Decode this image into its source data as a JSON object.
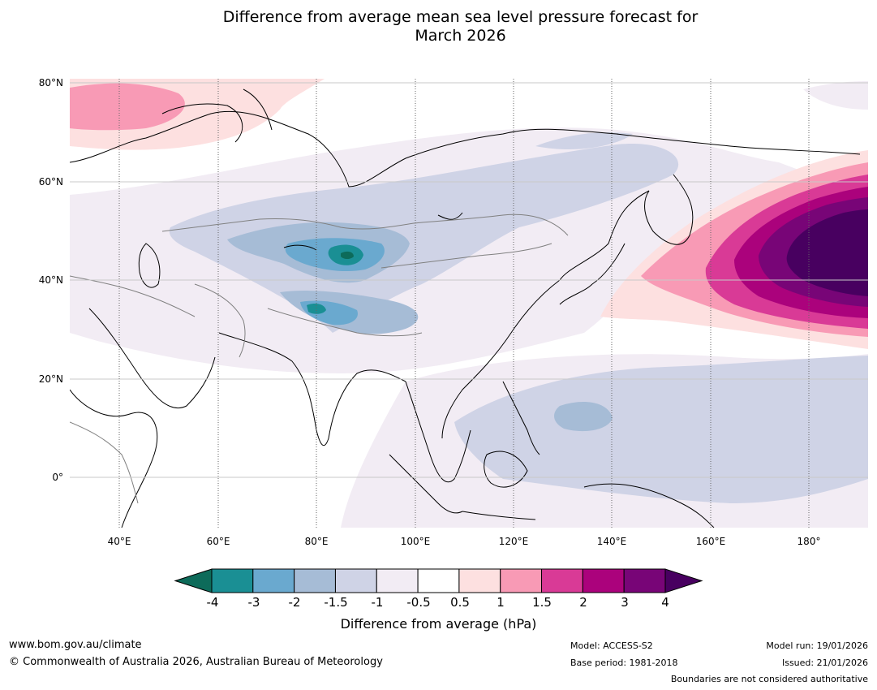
{
  "title": {
    "line1": "Difference from average mean sea level pressure forecast for",
    "line2": "March 2026"
  },
  "map": {
    "lat_labels": [
      "80°N",
      "60°N",
      "40°N",
      "20°N",
      "0°"
    ],
    "lon_labels": [
      "40°E",
      "60°E",
      "80°E",
      "100°E",
      "120°E",
      "140°E",
      "160°E",
      "180°"
    ]
  },
  "colorbar": {
    "ticks": [
      "-4",
      "-3",
      "-2",
      "-1.5",
      "-1",
      "-0.5",
      "0.5",
      "1",
      "1.5",
      "2",
      "3",
      "4"
    ],
    "colors": [
      "#1a8f94",
      "#6aa9cf",
      "#a6bcd6",
      "#cfd3e6",
      "#f2ecf4",
      "#ffffff",
      "#fde0e0",
      "#f89ab5",
      "#d93a96",
      "#ab027c",
      "#780577"
    ],
    "under_color": "#0d6b5a",
    "over_color": "#480060",
    "label": "Difference from average (hPa)"
  },
  "footer": {
    "website": "www.bom.gov.au/climate",
    "copyright": "© Commonwealth of Australia 2026, Australian Bureau of Meteorology",
    "model": "Model: ACCESS-S2",
    "base_period": "Base period: 1981-2018",
    "model_run": "Model run: 19/01/2026",
    "issued": "Issued: 21/01/2026",
    "disclaimer": "Boundaries are not considered authoritative"
  }
}
